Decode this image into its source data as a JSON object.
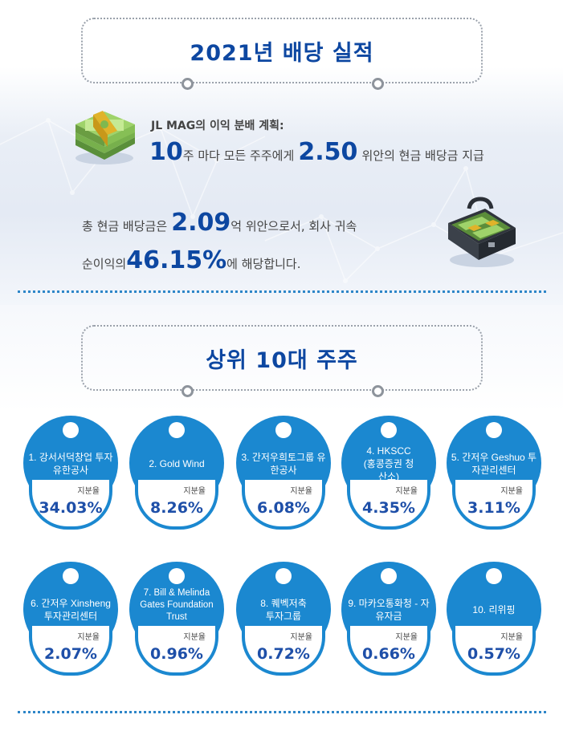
{
  "dividend": {
    "title": "2021년 배당 실적",
    "plan_label": "JL MAG의 이익 분배 계획:",
    "plan": {
      "shares": "10",
      "mid": "주 마다 모든 주주에게",
      "amount": "2.50",
      "end": "위안의 현금 배당금 지급"
    },
    "total": {
      "pre": "총 현금 배당금은",
      "value": "2.09",
      "post": "억 위안으로서, 회사 귀속"
    },
    "ratio": {
      "pre": "순이익의",
      "value": "46.15%",
      "post": "에 해당합니다."
    }
  },
  "shareholders": {
    "title": "상위 10대 주주",
    "share_label": "지분율",
    "items": [
      {
        "name": "1. 강서서덕창업 투자유한공사",
        "share": "34.03%"
      },
      {
        "name": "2. Gold Wind",
        "share": "8.26%"
      },
      {
        "name": "3. 간저우희토그룹 유한공사",
        "share": "6.08%"
      },
      {
        "name": "4. HKSCC (홍콩증권 청산소)",
        "share": "4.35%"
      },
      {
        "name": "5. 간저우 Geshuo 투자관리센터",
        "share": "3.11%"
      },
      {
        "name": "6. 간저우 Xinsheng 투자관리센터",
        "share": "2.07%"
      },
      {
        "name": "7. Bill & Melinda Gates Foundation Trust",
        "share": "0.96%"
      },
      {
        "name": "8. 퀘벡저축 투자그룹",
        "share": "0.72%"
      },
      {
        "name": "9. 마카오통화청 - 자유자금",
        "share": "0.66%"
      },
      {
        "name": "10. 리위핑",
        "share": "0.57%"
      }
    ]
  },
  "icons": {
    "cash": "cash-stack-icon",
    "case": "money-briefcase-icon"
  },
  "colors": {
    "accent": "#0d47a1",
    "card_blue": "#1b88d0",
    "dot_line": "#2e86c8"
  }
}
